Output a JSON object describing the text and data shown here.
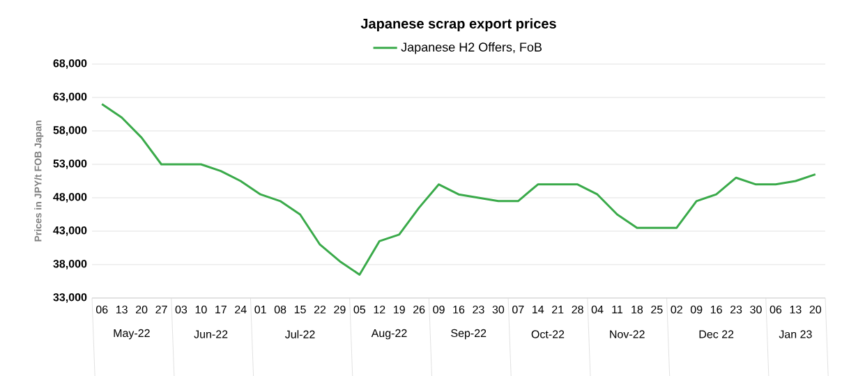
{
  "chart_data": {
    "type": "line",
    "title": "Japanese scrap export prices",
    "ylabel": "Prices in JPY/t FOB Japan",
    "categories": [
      "06",
      "13",
      "20",
      "27",
      "03",
      "10",
      "17",
      "24",
      "01",
      "08",
      "15",
      "22",
      "29",
      "05",
      "12",
      "19",
      "26",
      "09",
      "16",
      "23",
      "30",
      "07",
      "14",
      "21",
      "28",
      "04",
      "11",
      "18",
      "25",
      "02",
      "09",
      "16",
      "23",
      "30",
      "06",
      "13",
      "20"
    ],
    "series": [
      {
        "name": "Japanese H2 Offers, FoB",
        "color": "#3aaa4a",
        "values": [
          62000,
          60000,
          57000,
          53000,
          53000,
          53000,
          52000,
          50500,
          48500,
          47500,
          45500,
          41000,
          38500,
          36500,
          41500,
          42500,
          46500,
          50000,
          48500,
          48000,
          47500,
          47500,
          50000,
          50000,
          50000,
          48500,
          45500,
          43500,
          43500,
          43500,
          47500,
          48500,
          51000,
          50000,
          50000,
          50500,
          51500
        ]
      }
    ],
    "annotations": [
      "May-22",
      "Jun-22",
      "Jul-22",
      "Aug-22",
      "Sep-22",
      "Oct-22",
      "Nov-22",
      "Dec 22",
      "Jan 23"
    ],
    "ylim": [
      33000,
      68000
    ],
    "yticks": [
      {
        "value": 33000,
        "label": "33,000"
      },
      {
        "value": 38000,
        "label": "38,000"
      },
      {
        "value": 43000,
        "label": "43,000"
      },
      {
        "value": 48000,
        "label": "48,000"
      },
      {
        "value": 53000,
        "label": "53,000"
      },
      {
        "value": 58000,
        "label": "58,000"
      },
      {
        "value": 63000,
        "label": "63,000"
      },
      {
        "value": 68000,
        "label": "68,000"
      }
    ],
    "grid": "y",
    "legend": "top",
    "marker": "none",
    "line_style": "solid"
  }
}
